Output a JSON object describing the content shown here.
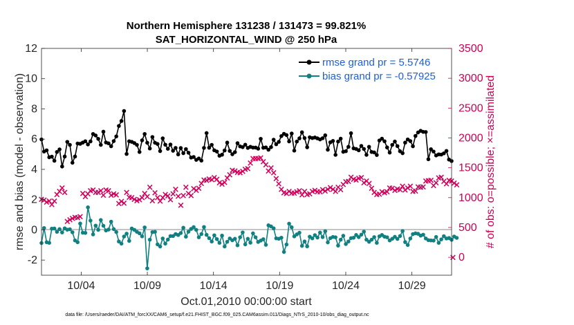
{
  "chart_data": {
    "type": "line",
    "title_line1": "Northern Hemisphere 131238 / 131473 = 99.821%",
    "title_line2": "SAT_HORIZONTAL_WIND @ 250 hPa",
    "xlabel": "Oct.01,2010 00:00:00 start",
    "ylabel_left": "rmse and bias (model - observation)",
    "ylabel_right": "# of obs: o=possible; ×=assimilated",
    "ylim_left": [
      -3,
      12
    ],
    "ylim_right": [
      -300,
      3500
    ],
    "left_ticks": [
      "-2",
      "0",
      "2",
      "4",
      "6",
      "8",
      "10",
      "12"
    ],
    "right_ticks": [
      "0",
      "500",
      "1000",
      "1500",
      "2000",
      "2500",
      "3000",
      "3500"
    ],
    "x_ticks": [
      {
        "day": 4,
        "label": "10/04"
      },
      {
        "day": 9,
        "label": "10/09"
      },
      {
        "day": 14,
        "label": "10/14"
      },
      {
        "day": 19,
        "label": "10/19"
      },
      {
        "day": 24,
        "label": "10/24"
      },
      {
        "day": 29,
        "label": "10/29"
      }
    ],
    "xlim_days": [
      1,
      32
    ],
    "series": [
      {
        "name": "rmse grand pr = 5.5746",
        "color": "#000000",
        "values": [
          5.98,
          5.18,
          5.26,
          4.8,
          4.84,
          4.57,
          5.15,
          5.32,
          4.19,
          4.85,
          5.82,
          5.62,
          4.44,
          4.85,
          5.71,
          5.69,
          5.77,
          5.86,
          5.65,
          5.85,
          6.34,
          6.24,
          6.02,
          5.62,
          6.49,
          5.78,
          5.72,
          5.53,
          5.87,
          6.18,
          6.87,
          7.2,
          7.86,
          5.02,
          5.86,
          5.82,
          5.74,
          5.62,
          5.15,
          5.92,
          6.34,
          5.76,
          5.38,
          6.14,
          5.76,
          5.68,
          5.21,
          6.05,
          5.63,
          5.36,
          5.64,
          5.23,
          5.42,
          4.99,
          5.41,
          5.07,
          5.34,
          5.1,
          4.78,
          4.82,
          4.63,
          4.72,
          4.58,
          5.42,
          6.4,
          5.43,
          5.62,
          5.26,
          5.18,
          4.9,
          4.97,
          5.25,
          5.77,
          5.22,
          5.0,
          5.14,
          5.73,
          5.52,
          5.47,
          5.63,
          5.42,
          5.49,
          5.44,
          5.44,
          5.37,
          6.02,
          5.43,
          5.45,
          5.3,
          5.47,
          5.96,
          5.66,
          5.82,
          6.2,
          6.35,
          6.27,
          5.85,
          6.37,
          5.24,
          5.84,
          6.05,
          6.45,
          6.07,
          5.46,
          6.12,
          6.07,
          6.11,
          6.05,
          5.98,
          6.06,
          6.25,
          5.3,
          5.79,
          5.88,
          4.96,
          5.84,
          6.03,
          5.16,
          5.2,
          5.49,
          6.39,
          5.39,
          5.35,
          5.26,
          5.55,
          5.35,
          4.96,
          5.49,
          5.15,
          5.12,
          4.95,
          5.91,
          6.03,
          5.86,
          5.45,
          5.11,
          5.62,
          5.84,
          5.54,
          5.2,
          5.07,
          5.77,
          5.98,
          5.87,
          5.53,
          6.21,
          6.44,
          6.55,
          6.48,
          6.47,
          4.67,
          5.33,
          5.18,
          4.92,
          4.99,
          4.98,
          5.06,
          5.22,
          4.65,
          4.55
        ]
      },
      {
        "name": "bias grand pr = -0.57925",
        "color": "#108080",
        "values": [
          -0.87,
          0.12,
          -0.82,
          -0.86,
          0.08,
          0.09,
          -0.13,
          0.05,
          -0.17,
          0.1,
          0.01,
          0.04,
          -0.16,
          -0.7,
          -0.82,
          0.42,
          -0.19,
          -0.2,
          1.49,
          0.61,
          -0.3,
          0.28,
          0.0,
          0.65,
          0.27,
          -0.04,
          0.02,
          0.54,
          0.05,
          -0.14,
          -0.77,
          -0.91,
          -0.44,
          -0.25,
          -0.73,
          0.09,
          0.0,
          -0.13,
          -0.23,
          -0.43,
          0.16,
          -2.55,
          -0.65,
          -0.15,
          -0.13,
          -0.96,
          -1.1,
          -0.57,
          -0.91,
          -0.64,
          -0.41,
          -0.41,
          -0.28,
          -0.34,
          -0.21,
          0.14,
          -0.45,
          -0.12,
          0.06,
          0.18,
          0.0,
          -0.49,
          -0.28,
          0.19,
          -0.33,
          -0.55,
          -0.77,
          -0.36,
          -0.61,
          -0.86,
          -0.38,
          -1.1,
          -0.79,
          -0.57,
          -0.69,
          -0.59,
          -1.02,
          -0.49,
          -0.17,
          -0.96,
          -0.59,
          -0.85,
          -0.23,
          -0.49,
          -0.8,
          -0.71,
          -0.62,
          -0.99,
          0.3,
          0.23,
          0.1,
          -0.56,
          -0.59,
          -0.52,
          -1.46,
          -0.97,
          0.41,
          0.17,
          -0.43,
          -0.3,
          -0.19,
          -1.06,
          -0.77,
          -1.09,
          -0.45,
          -0.56,
          -0.35,
          -0.51,
          -0.18,
          -0.48,
          -0.09,
          -0.83,
          -0.55,
          -0.47,
          -0.49,
          -1.04,
          -0.65,
          -0.39,
          -0.94,
          -0.77,
          -0.55,
          -0.52,
          -0.34,
          -0.48,
          -0.32,
          -0.12,
          -0.65,
          -0.79,
          -0.65,
          -0.48,
          -0.86,
          -0.43,
          -0.34,
          -0.45,
          -0.49,
          -0.7,
          -0.59,
          -0.46,
          -0.6,
          -0.41,
          -0.08,
          -0.81,
          -1.0,
          -0.57,
          -0.28,
          -0.23,
          -0.26,
          -0.38,
          -0.32,
          -0.57,
          -0.68,
          -0.7,
          -0.71,
          -0.47,
          -0.86,
          -0.63,
          -0.42,
          -0.57,
          -0.54,
          -0.66,
          -0.44,
          -0.53
        ]
      }
    ],
    "assimilated_obs": {
      "marker": "×",
      "color": "#d1005a",
      "values": [
        972,
        964,
        930,
        947,
        885,
        946,
        1058,
        1106,
        1164,
        1090,
        602,
        632,
        657,
        673,
        669,
        683,
        1073,
        1021,
        1066,
        1120,
        1130,
        1092,
        1091,
        1122,
        1045,
        1130,
        1117,
        1045,
        1068,
        1051,
        904,
        938,
        910,
        1092,
        1010,
        1006,
        973,
        950,
        967,
        1003,
        1073,
        1018,
        1176,
        953,
        1087,
        1002,
        947,
        1004,
        1056,
        1032,
        969,
        1065,
        1140,
        1024,
        874,
        1036,
        1175,
        1075,
        1037,
        1155,
        1125,
        1159,
        1240,
        1297,
        1291,
        1315,
        1305,
        1337,
        1308,
        1255,
        1228,
        1261,
        1334,
        1387,
        1462,
        1449,
        1429,
        1420,
        1445,
        1476,
        1491,
        1583,
        1657,
        1658,
        1660,
        1667,
        1606,
        1553,
        1451,
        1502,
        1419,
        1320,
        1235,
        1142,
        1084,
        1073,
        1108,
        1079,
        1081,
        1103,
        1118,
        1051,
        1107,
        1054,
        1067,
        1106,
        1123,
        1103,
        1104,
        1136,
        1115,
        1145,
        1171,
        1144,
        1110,
        1176,
        1137,
        1224,
        1270,
        1277,
        1343,
        1308,
        1301,
        1328,
        1339,
        1254,
        1279,
        1238,
        1160,
        1092,
        1055,
        1062,
        1100,
        1084,
        1099,
        1166,
        1159,
        1127,
        1151,
        1139,
        1193,
        1130,
        1168,
        1197,
        1109,
        1112,
        1181,
        1180,
        1183,
        1281,
        1285,
        1293,
        1206,
        1253,
        1334,
        1347,
        1276,
        1235,
        1294,
        1282,
        1244,
        1217
      ]
    },
    "footnote": "data file: /Users/raeder/DAI/ATM_forcXX/CAM6_setup/f.e21.FHIST_BGC.f09_025.CAM6assim.011/Diags_NTrS_2010-10/obs_diag_output.nc"
  }
}
